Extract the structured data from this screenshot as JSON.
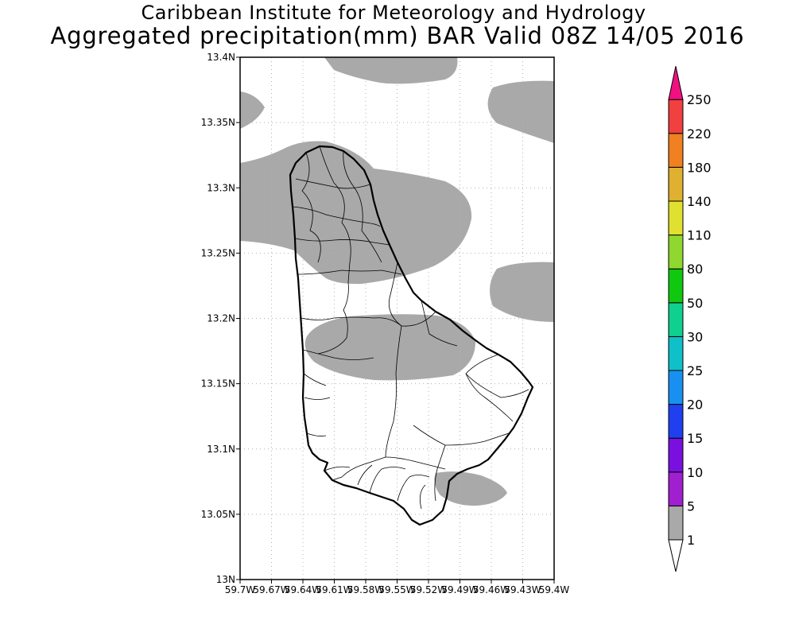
{
  "header": {
    "line1": "Caribbean Institute for Meteorology and Hydrology",
    "line2": "Aggregated precipitation(mm) BAR Valid 08Z 14/05 2016"
  },
  "map": {
    "lat_range": [
      13.0,
      13.4
    ],
    "lon_range": [
      -59.7,
      -59.4
    ],
    "lat_ticks": [
      "13N",
      "13.05N",
      "13.1N",
      "13.15N",
      "13.2N",
      "13.25N",
      "13.3N",
      "13.35N",
      "13.4N"
    ],
    "lon_ticks": [
      "59.7W",
      "59.67W",
      "59.64W",
      "59.61W",
      "59.58W",
      "59.55W",
      "59.52W",
      "59.49W",
      "59.46W",
      "59.43W",
      "59.4W"
    ],
    "grid": "dotted",
    "shading": {
      "class": "1-5 mm",
      "color": "#a9a9a9"
    }
  },
  "colorbar": {
    "labels": [
      "1",
      "5",
      "10",
      "15",
      "20",
      "25",
      "30",
      "50",
      "80",
      "110",
      "140",
      "180",
      "220",
      "250"
    ],
    "colors": [
      "#ffffff",
      "#a9a9a9",
      "#a020d0",
      "#7a10e0",
      "#2040f0",
      "#1890f0",
      "#10c0c8",
      "#10d090",
      "#10c810",
      "#90d830",
      "#e0e030",
      "#e0b030",
      "#f08020",
      "#f04040",
      "#f01080"
    ]
  }
}
